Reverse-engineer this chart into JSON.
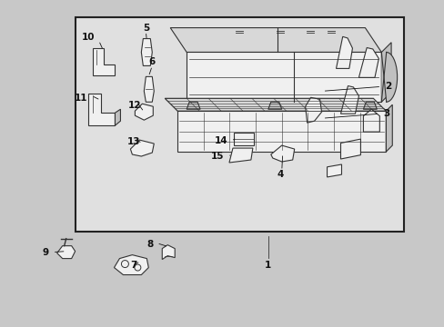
{
  "fig_width": 4.89,
  "fig_height": 3.6,
  "dpi": 100,
  "background_color": "#c8c8c8",
  "box_bg": "#e0e0e0",
  "box_edge": "#222222",
  "line_color": "#333333",
  "text_color": "#111111",
  "part_fill": "#f0f0f0",
  "part_fill2": "#d8d8d8",
  "part_fill3": "#c0c0c0"
}
